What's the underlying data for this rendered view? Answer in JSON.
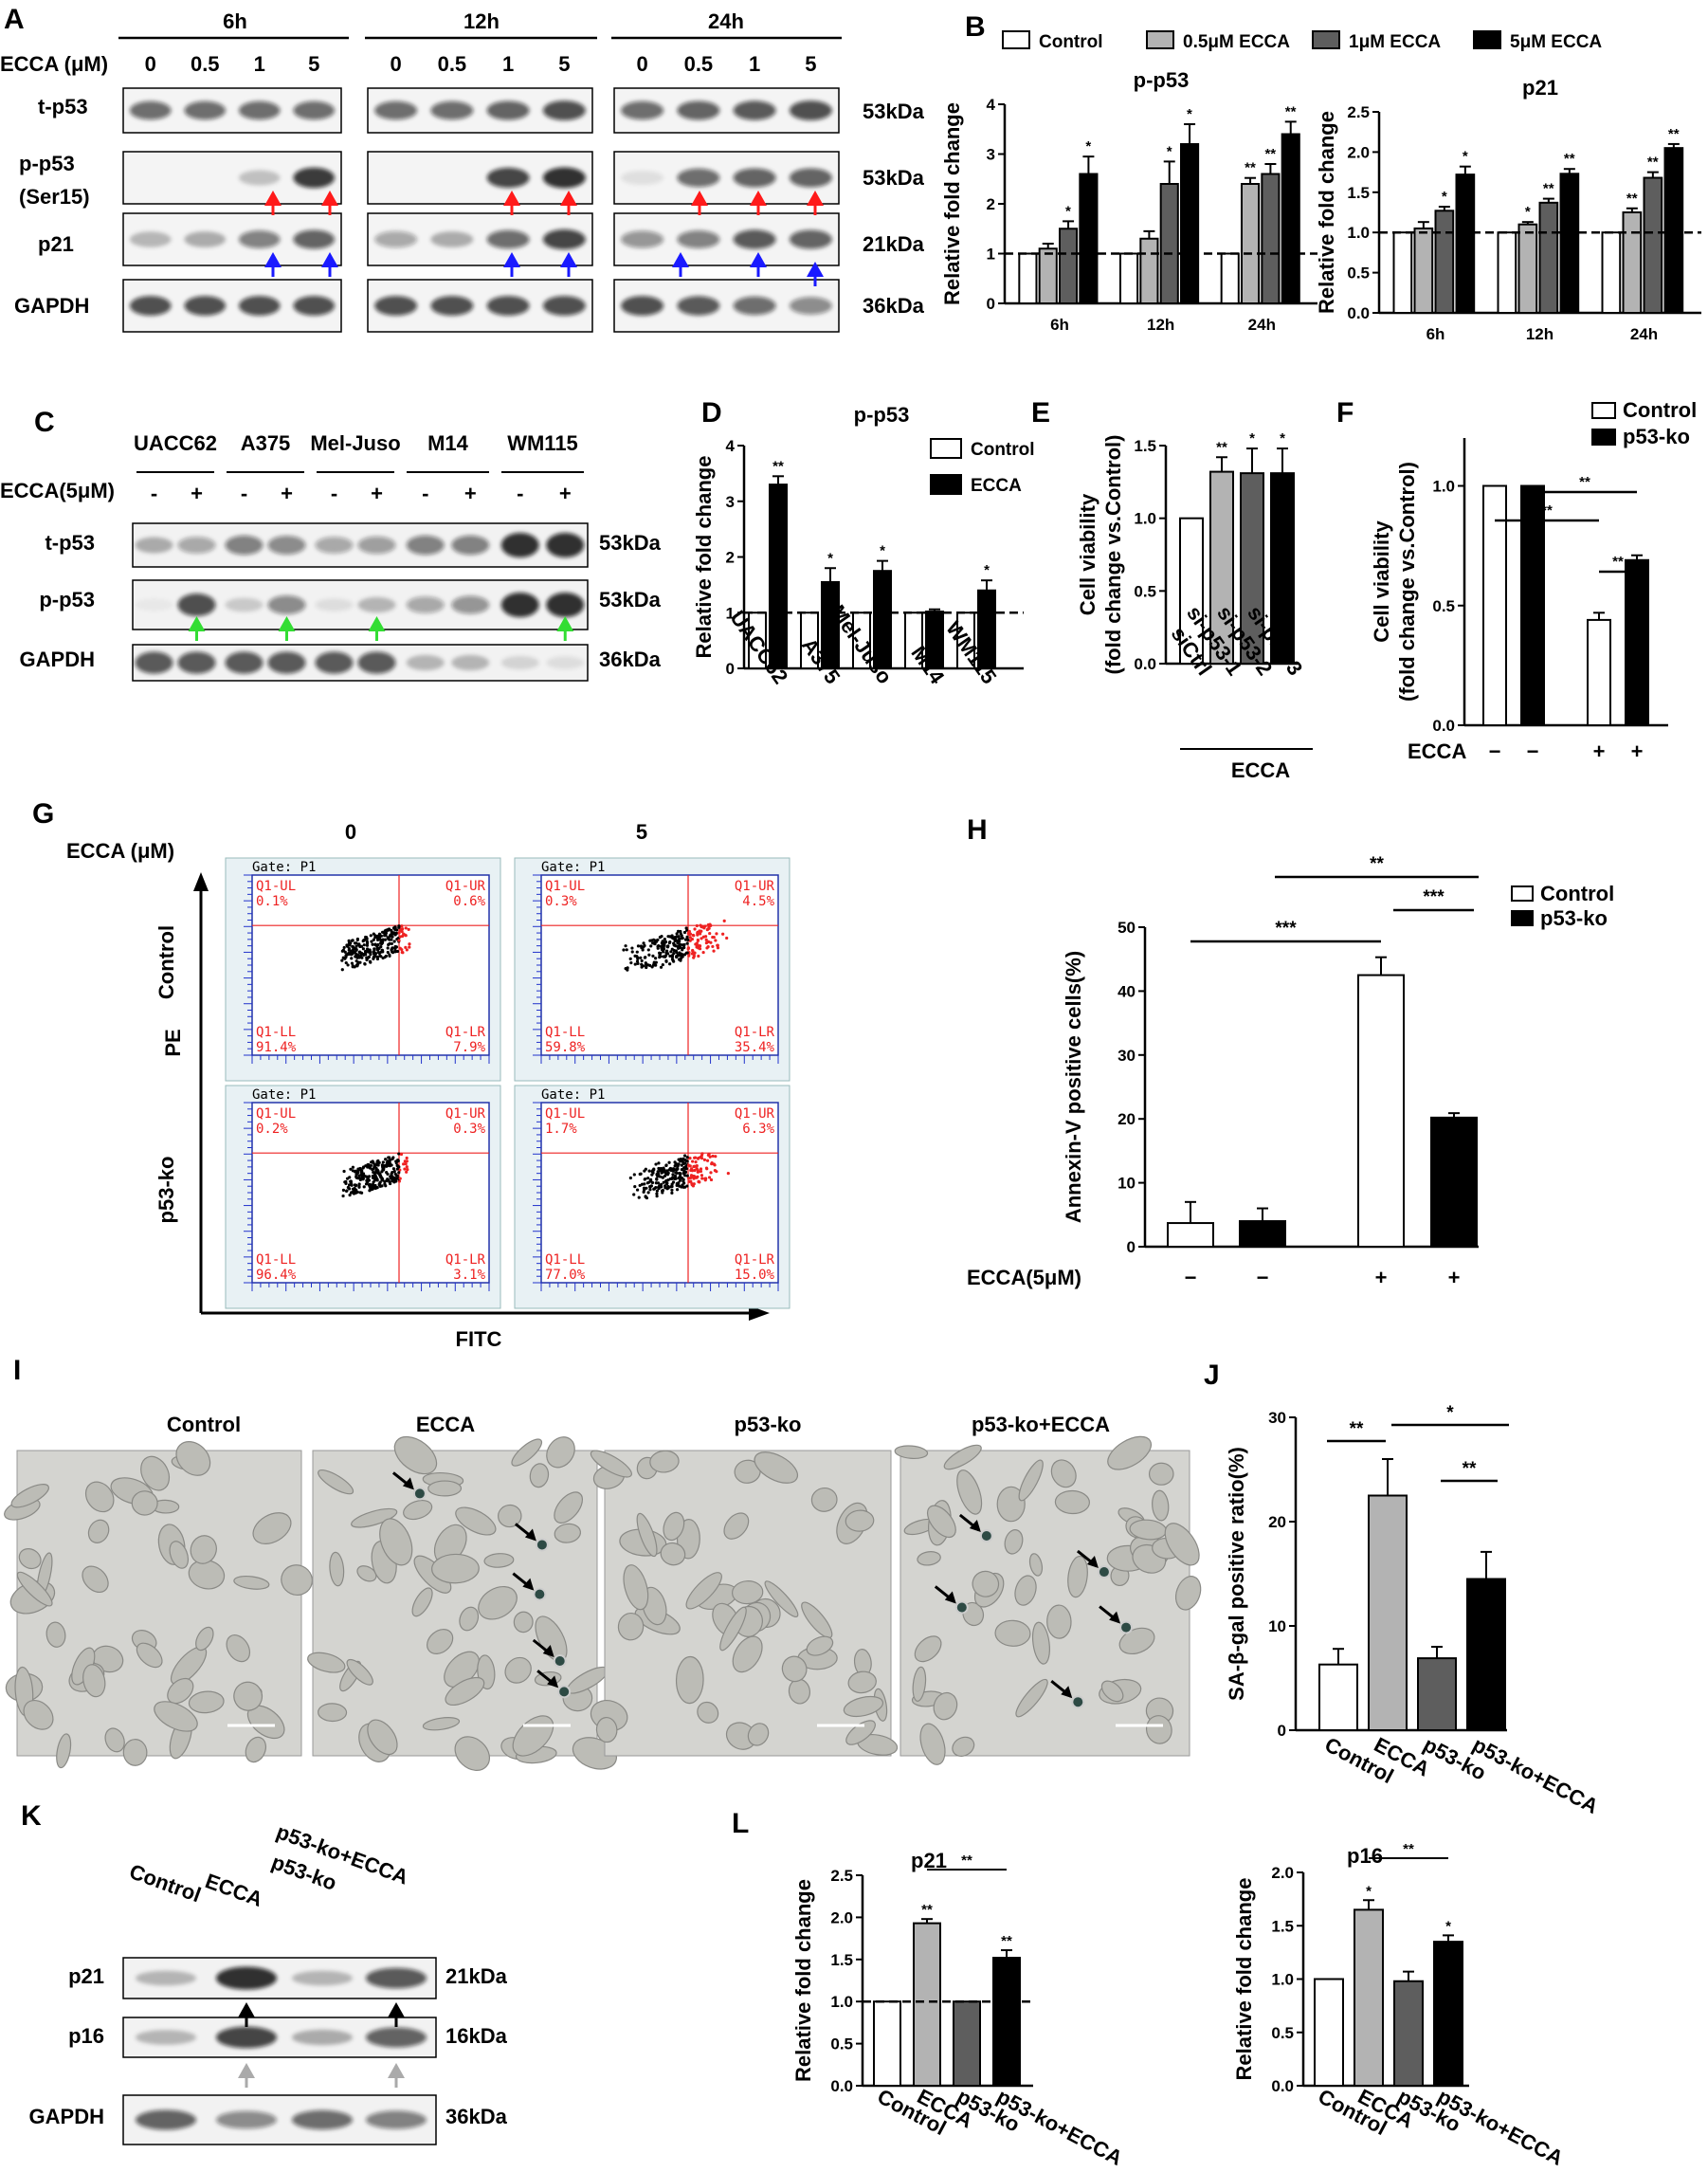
{
  "panels": {
    "A": "A",
    "B": "B",
    "C": "C",
    "D": "D",
    "E": "E",
    "F": "F",
    "G": "G",
    "H": "H",
    "I": "I",
    "J": "J",
    "K": "K",
    "L": "L"
  },
  "colors": {
    "control": "#ffffff",
    "conc05": "#b3b3b3",
    "conc1": "#5e5e5e",
    "conc5": "#000000",
    "p53ko": "#000000",
    "red_arrow": "#ff1a1a",
    "blue_arrow": "#1a1aff",
    "green_arrow": "#33dd33",
    "gray_arrow": "#aaaaaa",
    "flow_red": "#ee2222",
    "micro_bg": "#d4d4d0"
  },
  "blotA": {
    "ecca_label": "ECCA (μM)",
    "times": [
      "6h",
      "12h",
      "24h"
    ],
    "concs": [
      "0",
      "0.5",
      "1",
      "5"
    ],
    "rows": [
      "t-p53",
      "p-p53",
      "(Ser15)",
      "p21",
      "GAPDH"
    ],
    "kda": [
      "53kDa",
      "53kDa",
      "21kDa",
      "36kDa"
    ]
  },
  "blotC": {
    "lines": [
      "UACC62",
      "A375",
      "Mel-Juso",
      "M14",
      "WM115"
    ],
    "ecca_label": "ECCA(5μM)",
    "signs": [
      "-",
      "+"
    ],
    "rows": [
      "t-p53",
      "p-p53",
      "GAPDH"
    ],
    "kda": [
      "53kDa",
      "53kDa",
      "36kDa"
    ]
  },
  "blotK": {
    "lanes": [
      "Control",
      "ECCA",
      "p53-ko",
      "p53-ko+ECCA"
    ],
    "rows": [
      "p21",
      "p16",
      "GAPDH"
    ],
    "kda": [
      "21kDa",
      "16kDa",
      "36kDa"
    ]
  },
  "flow": {
    "ecca_label": "ECCA (μM)",
    "cols": [
      "0",
      "5"
    ],
    "rows": [
      "Control",
      "p53-ko"
    ],
    "ylabel": "PE",
    "xlabel": "FITC",
    "gate": "Gate: P1",
    "quad_names": [
      "Q1-UL",
      "Q1-UR",
      "Q1-LL",
      "Q1-LR"
    ],
    "plots": [
      {
        "ul": "0.1%",
        "ur": "0.6%",
        "ll": "91.4%",
        "lr": "7.9%"
      },
      {
        "ul": "0.3%",
        "ur": "4.5%",
        "ll": "59.8%",
        "lr": "35.4%"
      },
      {
        "ul": "0.2%",
        "ur": "0.3%",
        "ll": "96.4%",
        "lr": "3.1%"
      },
      {
        "ul": "1.7%",
        "ur": "6.3%",
        "ll": "77.0%",
        "lr": "15.0%"
      }
    ]
  },
  "micro": {
    "labels": [
      "Control",
      "ECCA",
      "p53-ko",
      "p53-ko+ECCA"
    ]
  },
  "chart_data": [
    {
      "id": "B1",
      "type": "bar",
      "title": "p-p53",
      "ylabel": "Relative fold change",
      "categories": [
        "6h",
        "12h",
        "24h"
      ],
      "ylim": [
        0,
        4
      ],
      "yticks": [
        "0",
        "1",
        "2",
        "3",
        "4"
      ],
      "legend": [
        "Control",
        "0.5μM  ECCA",
        "1μM  ECCA",
        "5μM  ECCA"
      ],
      "series": [
        {
          "name": "Control",
          "values": [
            1,
            1,
            1
          ],
          "err": [
            0,
            0,
            0
          ],
          "sig": [
            "",
            "",
            ""
          ]
        },
        {
          "name": "0.5μM  ECCA",
          "values": [
            1.1,
            1.3,
            2.4
          ],
          "err": [
            0.1,
            0.15,
            0.12
          ],
          "sig": [
            "",
            "",
            "**"
          ]
        },
        {
          "name": "1μM  ECCA",
          "values": [
            1.5,
            2.4,
            2.6
          ],
          "err": [
            0.15,
            0.45,
            0.2
          ],
          "sig": [
            "*",
            "*",
            "**"
          ]
        },
        {
          "name": "5μM  ECCA",
          "values": [
            2.6,
            3.2,
            3.4
          ],
          "err": [
            0.35,
            0.4,
            0.25
          ],
          "sig": [
            "*",
            "*",
            "**"
          ]
        }
      ]
    },
    {
      "id": "B2",
      "type": "bar",
      "title": "p21",
      "ylabel": "Relative fold change",
      "categories": [
        "6h",
        "12h",
        "24h"
      ],
      "ylim": [
        0,
        2.5
      ],
      "yticks": [
        "0.0",
        "0.5",
        "1.0",
        "1.5",
        "2.0",
        "2.5"
      ],
      "series": [
        {
          "name": "Control",
          "values": [
            1,
            1,
            1
          ],
          "err": [
            0,
            0,
            0
          ],
          "sig": [
            "",
            "",
            ""
          ]
        },
        {
          "name": "0.5μM  ECCA",
          "values": [
            1.05,
            1.1,
            1.25
          ],
          "err": [
            0.08,
            0.03,
            0.05
          ],
          "sig": [
            "",
            "*",
            "**"
          ]
        },
        {
          "name": "1μM  ECCA",
          "values": [
            1.27,
            1.37,
            1.68
          ],
          "err": [
            0.05,
            0.05,
            0.07
          ],
          "sig": [
            "*",
            "**",
            "**"
          ]
        },
        {
          "name": "5μM  ECCA",
          "values": [
            1.72,
            1.73,
            2.05
          ],
          "err": [
            0.1,
            0.06,
            0.05
          ],
          "sig": [
            "*",
            "**",
            "**"
          ]
        }
      ]
    },
    {
      "id": "D",
      "type": "bar",
      "title": "p-p53",
      "ylabel": "Relative fold change",
      "categories": [
        "UACC62",
        "A375",
        "Mel-Juso",
        "M14",
        "WM115"
      ],
      "ylim": [
        0,
        4
      ],
      "yticks": [
        "0",
        "1",
        "2",
        "3",
        "4"
      ],
      "legend": [
        "Control",
        "ECCA"
      ],
      "series": [
        {
          "name": "Control",
          "values": [
            1,
            1,
            1,
            1,
            1
          ],
          "err": [
            0,
            0,
            0,
            0,
            0
          ],
          "sig": [
            "",
            "",
            "",
            "",
            ""
          ]
        },
        {
          "name": "ECCA",
          "values": [
            3.3,
            1.55,
            1.75,
            1.02,
            1.4
          ],
          "err": [
            0.15,
            0.25,
            0.18,
            0.04,
            0.18
          ],
          "sig": [
            "**",
            "*",
            "*",
            "",
            "*"
          ]
        }
      ]
    },
    {
      "id": "E",
      "type": "bar",
      "ylabel": "Cell viability",
      "ylabel2": "(fold change vs.Control)",
      "categories": [
        "siCtrl",
        "si-p53-1",
        "si-p53-2",
        "si-p53-3"
      ],
      "ylim": [
        0,
        1.5
      ],
      "yticks": [
        "0.0",
        "0.5",
        "1.0",
        "1.5"
      ],
      "group_label": "ECCA",
      "values": [
        1.0,
        1.32,
        1.31,
        1.31
      ],
      "err": [
        0,
        0.1,
        0.17,
        0.17
      ],
      "sig": [
        "",
        "**",
        "*",
        "*"
      ]
    },
    {
      "id": "F",
      "type": "bar",
      "ylabel": "Cell viability",
      "ylabel2": "(fold change vs.Control)",
      "ylim": [
        0,
        1.2
      ],
      "yticks": [
        "0.0",
        "0.5",
        "1.0"
      ],
      "legend": [
        "Control",
        "p53-ko"
      ],
      "xrow_label": "ECCA",
      "xsigns": [
        "−",
        "−",
        "+",
        "+"
      ],
      "values": [
        1.0,
        1.0,
        0.44,
        0.69
      ],
      "err": [
        0,
        0,
        0.03,
        0.02
      ],
      "brackets": [
        "**",
        "**",
        "**"
      ]
    },
    {
      "id": "H",
      "type": "bar",
      "ylabel": "Annexin-V positive cells(%)",
      "ylim": [
        0,
        50
      ],
      "yticks": [
        "0",
        "10",
        "20",
        "30",
        "40",
        "50"
      ],
      "legend": [
        "Control",
        "p53-ko"
      ],
      "xrow_label": "ECCA(5μM)",
      "xsigns": [
        "−",
        "−",
        "+",
        "+"
      ],
      "values": [
        3.7,
        4.0,
        42.5,
        20.2
      ],
      "err": [
        3.3,
        2.0,
        2.8,
        0.7
      ],
      "brackets": [
        "***",
        "***",
        "**"
      ]
    },
    {
      "id": "J",
      "type": "bar",
      "ylabel": "SA-β-gal positive ratio(%)",
      "categories": [
        "Control",
        "ECCA",
        "p53-ko",
        "p53-ko+ECCA"
      ],
      "ylim": [
        0,
        30
      ],
      "yticks": [
        "0",
        "10",
        "20",
        "30"
      ],
      "values": [
        6.3,
        22.5,
        6.9,
        14.5
      ],
      "err": [
        1.5,
        3.5,
        1.1,
        2.6
      ],
      "brackets": [
        "**",
        "*",
        "**"
      ]
    },
    {
      "id": "L1",
      "type": "bar",
      "title": "p21",
      "ylabel": "Relative fold change",
      "categories": [
        "Control",
        "ECCA",
        "p53-ko",
        "p53-ko+ECCA"
      ],
      "ylim": [
        0,
        2.5
      ],
      "yticks": [
        "0.0",
        "0.5",
        "1.0",
        "1.5",
        "2.0",
        "2.5"
      ],
      "values": [
        1.0,
        1.93,
        1.0,
        1.52
      ],
      "err": [
        0,
        0.05,
        0,
        0.09
      ],
      "sig": [
        "",
        "**",
        "",
        "**"
      ],
      "brackets": [
        "**"
      ]
    },
    {
      "id": "L2",
      "type": "bar",
      "title": "p16",
      "ylabel": "Relative fold change",
      "categories": [
        "Control",
        "ECCA",
        "p53-ko",
        "p53-ko+ECCA"
      ],
      "ylim": [
        0,
        2.0
      ],
      "yticks": [
        "0.0",
        "0.5",
        "1.0",
        "1.5",
        "2.0"
      ],
      "values": [
        1.0,
        1.65,
        0.98,
        1.35
      ],
      "err": [
        0,
        0.09,
        0.09,
        0.06
      ],
      "sig": [
        "",
        "*",
        "",
        "*"
      ],
      "brackets": [
        "**"
      ]
    }
  ]
}
